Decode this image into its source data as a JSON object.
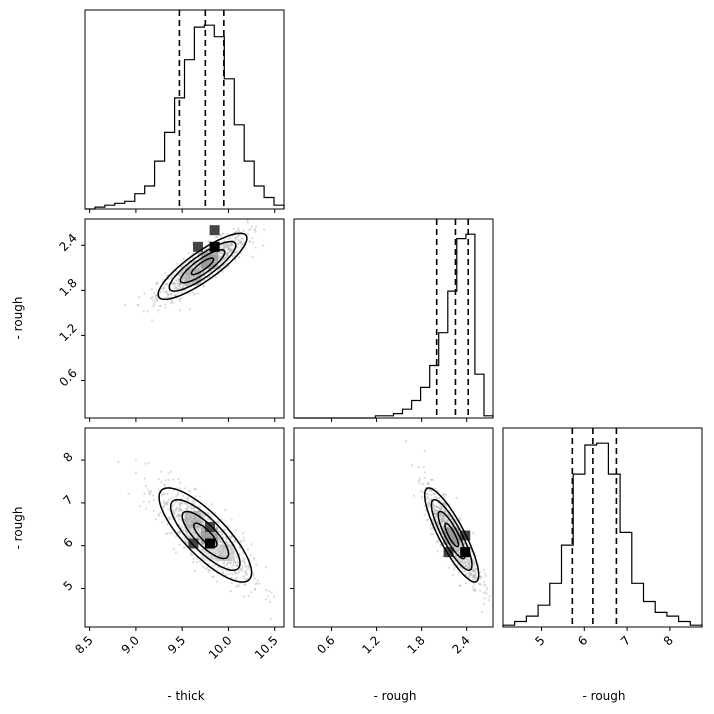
{
  "chart_data": {
    "type": "corner",
    "parameters": [
      "- thick",
      "- rough",
      "- rough"
    ],
    "axis_labels": {
      "x": [
        "- thick",
        "- rough",
        "- rough"
      ],
      "y": [
        "- rough",
        "- rough"
      ]
    },
    "ranges": [
      [
        8.45,
        10.6
      ],
      [
        0.1,
        2.75
      ],
      [
        4.1,
        8.75
      ]
    ],
    "ticks": [
      [
        "8.5",
        "9.0",
        "9.5",
        "10.0",
        "10.5"
      ],
      [
        "0.6",
        "1.2",
        "1.8",
        "2.4"
      ],
      [
        "5",
        "6",
        "7",
        "8"
      ]
    ],
    "quantiles": [
      [
        9.47,
        9.75,
        9.95
      ],
      [
        2.0,
        2.25,
        2.42
      ],
      [
        5.72,
        6.2,
        6.75
      ]
    ],
    "histograms": [
      {
        "edges": [
          8.45,
          10.6
        ],
        "counts": [
          0,
          1,
          2,
          3,
          4,
          8,
          12,
          25,
          40,
          58,
          78,
          95,
          96,
          90,
          68,
          44,
          25,
          12,
          6,
          2
        ]
      },
      {
        "edges": [
          0.1,
          2.75
        ],
        "counts": [
          0,
          0,
          0,
          0,
          0,
          0,
          0,
          0,
          0,
          1,
          1,
          2,
          4,
          8,
          14,
          24,
          39,
          58,
          82,
          84,
          20,
          1
        ]
      },
      {
        "edges": [
          4.1,
          8.75
        ],
        "counts": [
          1,
          3,
          6,
          12,
          24,
          45,
          84,
          100,
          101,
          84,
          52,
          24,
          14,
          8,
          6,
          3,
          1
        ]
      }
    ],
    "panels": [
      {
        "x": 0,
        "y": 1,
        "mean": [
          9.72,
          2.12
        ],
        "sd": [
          0.24,
          0.22
        ],
        "corr": 0.85,
        "peak": [
          9.85,
          2.38
        ]
      },
      {
        "x": 0,
        "y": 2,
        "mean": [
          9.75,
          6.25
        ],
        "sd": [
          0.25,
          0.55
        ],
        "corr": -0.8,
        "peak": [
          9.8,
          6.05
        ]
      },
      {
        "x": 1,
        "y": 2,
        "mean": [
          2.2,
          6.25
        ],
        "sd": [
          0.18,
          0.55
        ],
        "corr": -0.85,
        "peak": [
          2.38,
          5.85
        ]
      }
    ]
  }
}
